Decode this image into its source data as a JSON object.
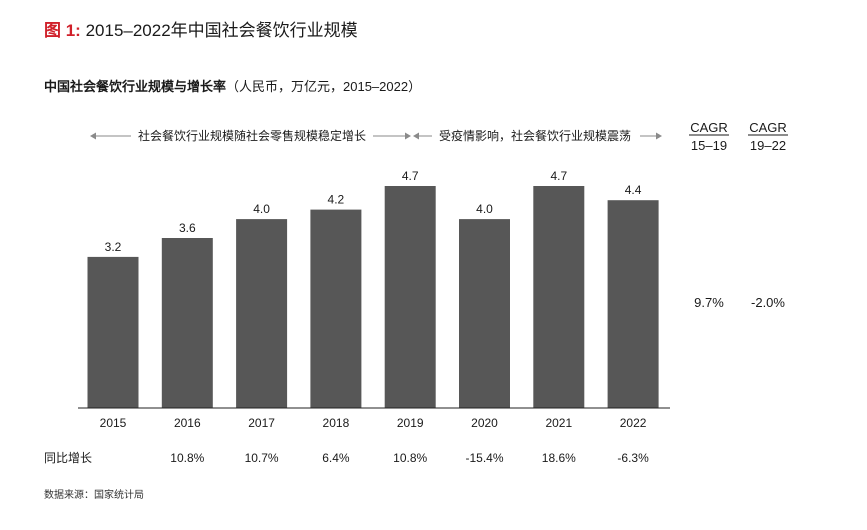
{
  "figure": {
    "label": "图 1:",
    "title": "2015–2022年中国社会餐饮行业规模"
  },
  "chart_title": {
    "main": "中国社会餐饮行业规模与增长率",
    "units": "（人民币，万亿元，2015–2022）"
  },
  "source": "数据来源：国家统计局",
  "chart_data": {
    "type": "bar",
    "title": "中国社会餐饮行业规模与增长率（人民币，万亿元，2015–2022）",
    "categories": [
      "2015",
      "2016",
      "2017",
      "2018",
      "2019",
      "2020",
      "2021",
      "2022"
    ],
    "values": [
      3.2,
      3.6,
      4.0,
      4.2,
      4.7,
      4.0,
      4.7,
      4.4
    ],
    "value_labels": [
      "3.2",
      "3.6",
      "4.0",
      "4.2",
      "4.7",
      "4.0",
      "4.7",
      "4.4"
    ],
    "ylim": [
      0,
      4.7
    ],
    "grid": false,
    "bar_color": "#575757",
    "growth_row": {
      "label": "同比增长",
      "values": [
        "",
        "10.8%",
        "10.7%",
        "6.4%",
        "10.8%",
        "-15.4%",
        "18.6%",
        "-6.3%"
      ]
    },
    "annotations": [
      {
        "text": "社会餐饮行业规模随社会零售规模稳定增长",
        "from": "2015",
        "to": "2019"
      },
      {
        "text": "受疫情影响，社会餐饮行业规模震荡",
        "from": "2020",
        "to": "2022"
      }
    ],
    "cagr": [
      {
        "label_top": "CAGR",
        "label_bottom": "15–19",
        "value": "9.7%"
      },
      {
        "label_top": "CAGR",
        "label_bottom": "19–22",
        "value": "-2.0%"
      }
    ]
  }
}
